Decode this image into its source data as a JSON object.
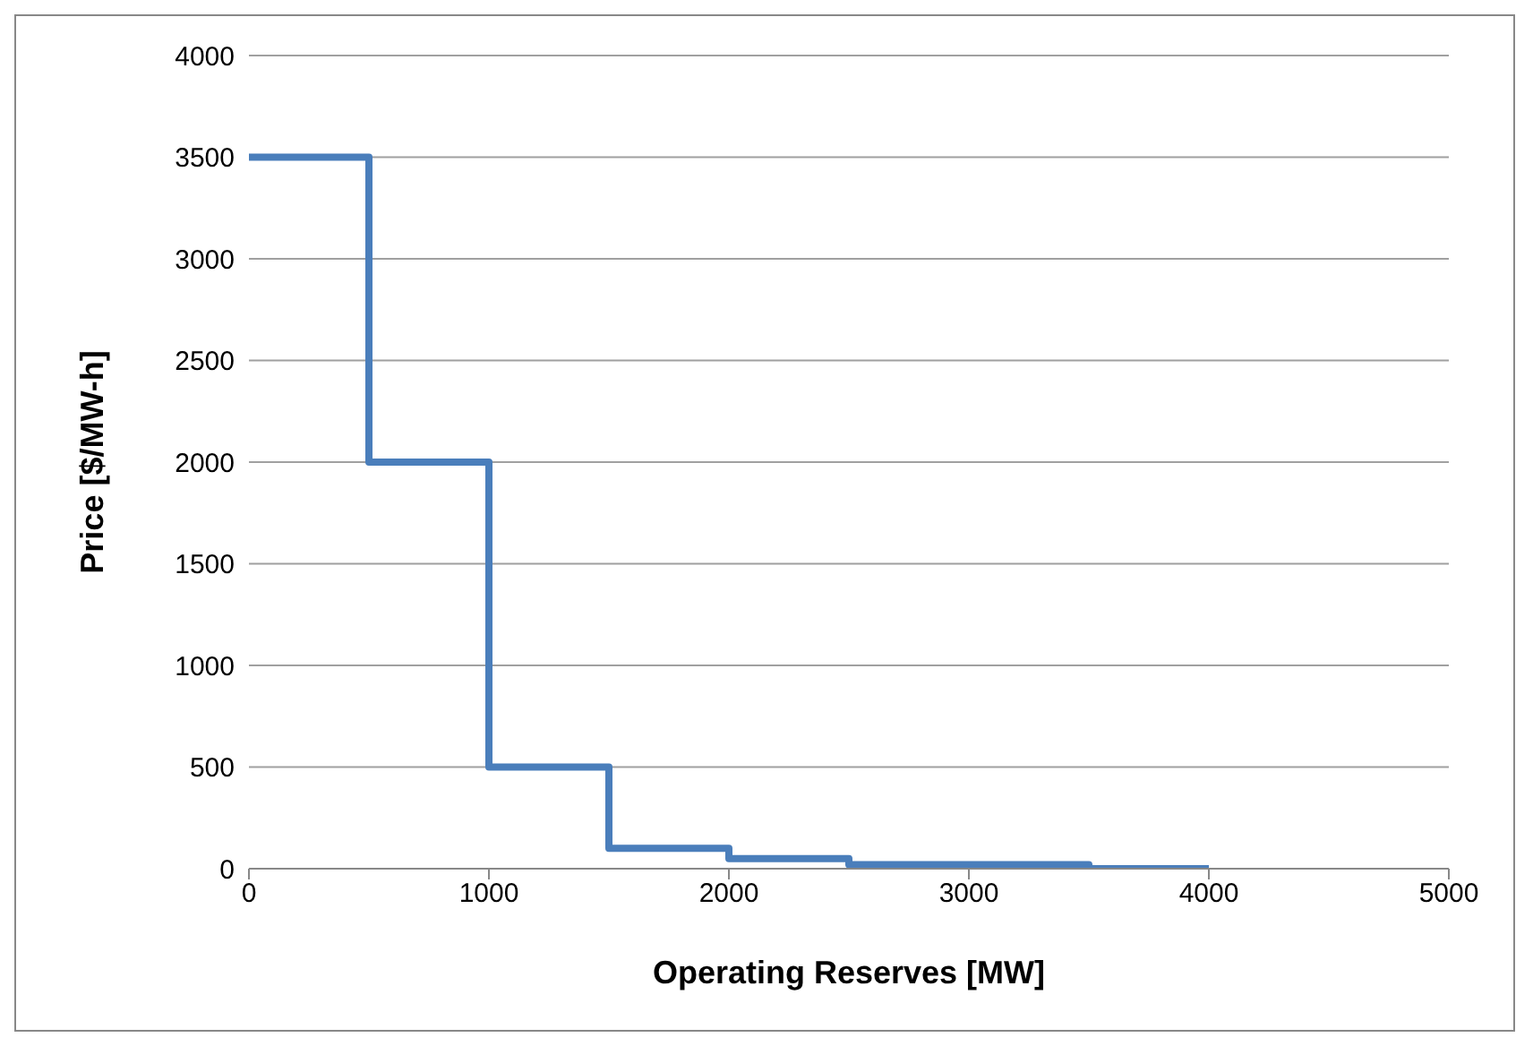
{
  "chart_data": {
    "type": "step",
    "xlabel": "Operating Reserves [MW]",
    "ylabel": "Price [$/MW-h]",
    "x": [
      0,
      500,
      1000,
      1500,
      2000,
      2500,
      3500,
      4000
    ],
    "series": [
      {
        "color": "#4a7ebb",
        "values": [
          3500,
          2000,
          500,
          100,
          50,
          20,
          0,
          0
        ]
      }
    ],
    "xlim": [
      0,
      5000
    ],
    "xticks": [
      0,
      1000,
      2000,
      3000,
      4000,
      5000
    ],
    "ylim": [
      0,
      4000
    ],
    "yticks": [
      0,
      500,
      1000,
      1500,
      2000,
      2500,
      3000,
      3500,
      4000
    ],
    "grid": "y",
    "legend": false,
    "line_style": "solid",
    "marker": "none"
  }
}
